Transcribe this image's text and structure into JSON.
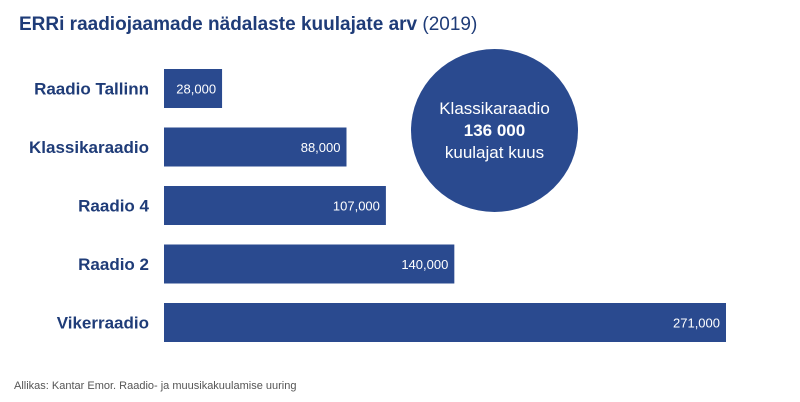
{
  "title": {
    "main": "ERRi raadiojaamade nädalaste kuulajate arv",
    "sub": "(2019)"
  },
  "chart_data": {
    "type": "bar",
    "orientation": "horizontal",
    "categories": [
      "Raadio Tallinn",
      "Klassikaraadio",
      "Raadio 4",
      "Raadio 2",
      "Vikerraadio"
    ],
    "values": [
      28000,
      88000,
      107000,
      140000,
      271000
    ],
    "value_labels": [
      "28,000",
      "88,000",
      "107,000",
      "140,000",
      "271,000"
    ],
    "xlim": [
      0,
      271000
    ],
    "grid": false,
    "bar_color": "#2a4a8f",
    "label_color": "#ffffff"
  },
  "callout": {
    "line1": "Klassikaraadio",
    "line2": "136 000",
    "line3": "kuulajat kuus",
    "color": "#2a4a8f"
  },
  "source": "Allikas: Kantar Emor. Raadio- ja muusikakuulamise uuring"
}
